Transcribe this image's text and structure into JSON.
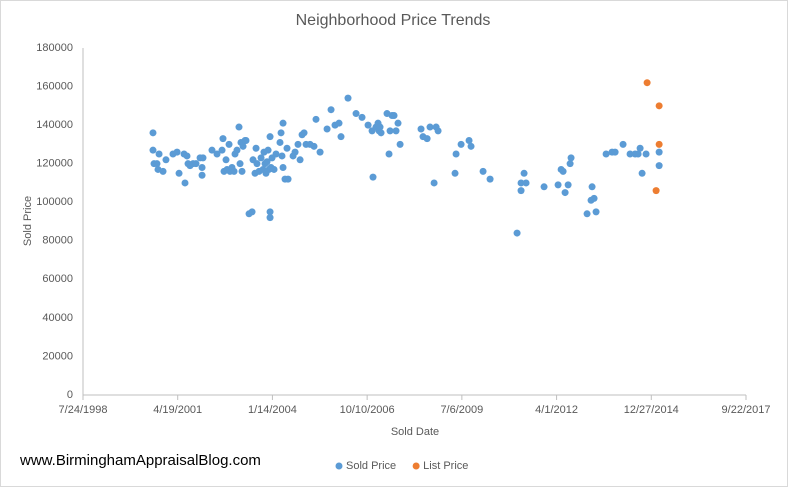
{
  "chart_data": {
    "type": "scatter",
    "title": "Neighborhood Price Trends",
    "x_label": "Sold Date",
    "y_label": "Sold Price",
    "footer": "www.BirminghamAppraisalBlog.com",
    "xlim": [
      36000,
      43000
    ],
    "xticks": [
      {
        "value": 36000,
        "label": "7/24/1998"
      },
      {
        "value": 37000,
        "label": "4/19/2001"
      },
      {
        "value": 38000,
        "label": "1/14/2004"
      },
      {
        "value": 39000,
        "label": "10/10/2006"
      },
      {
        "value": 40000,
        "label": "7/6/2009"
      },
      {
        "value": 41000,
        "label": "4/1/2012"
      },
      {
        "value": 42000,
        "label": "12/27/2014"
      },
      {
        "value": 43000,
        "label": "9/22/2017"
      }
    ],
    "ylim": [
      0,
      180000
    ],
    "yticks": [
      0,
      20000,
      40000,
      60000,
      80000,
      100000,
      120000,
      140000,
      160000,
      180000
    ],
    "grid": false,
    "legend": "bottom",
    "series": [
      {
        "name": "Sold Price",
        "color": "#5b9bd5",
        "x": [
          36739,
          36739,
          36750,
          36781,
          36792,
          36803,
          36845,
          36876,
          36950,
          36993,
          37014,
          37067,
          37077,
          37098,
          37109,
          37130,
          37162,
          37193,
          37236,
          37257,
          37257,
          37267,
          37362,
          37415,
          37468,
          37478,
          37489,
          37510,
          37521,
          37542,
          37552,
          37573,
          37595,
          37605,
          37626,
          37647,
          37658,
          37668,
          37679,
          37690,
          37711,
          37721,
          37753,
          37785,
          37795,
          37816,
          37827,
          37837,
          37859,
          37880,
          37901,
          37911,
          37922,
          37932,
          37943,
          37954,
          37964,
          37975,
          37975,
          37975,
          37985,
          37996,
          38017,
          38038,
          38080,
          38091,
          38112,
          38101,
          38112,
          38133,
          38165,
          38154,
          38218,
          38239,
          38270,
          38292,
          38313,
          38334,
          38355,
          38397,
          38439,
          38460,
          38503,
          38577,
          38619,
          38661,
          38703,
          38724,
          38798,
          38883,
          38946,
          39010,
          39052,
          39062,
          39094,
          39115,
          39126,
          39136,
          39147,
          39210,
          39231,
          39242,
          39263,
          39284,
          39305,
          39326,
          39348,
          39569,
          39590,
          39633,
          39664,
          39707,
          39728,
          39749,
          39928,
          39939,
          39992,
          40076,
          40097,
          40224,
          40298,
          40583,
          40625,
          40625,
          40657,
          40678,
          40868,
          41016,
          41048,
          41069,
          41090,
          41122,
          41143,
          41153,
          41322,
          41364,
          41375,
          41396,
          41417,
          41523,
          41586,
          41618,
          41702,
          41776,
          41829,
          41861,
          41882,
          41903,
          41945,
          42083,
          42083
        ],
        "values": [
          136000,
          127000,
          120000,
          120000,
          117000,
          125000,
          116000,
          122000,
          125000,
          126000,
          115000,
          125000,
          110000,
          124000,
          120000,
          119000,
          120000,
          120000,
          123000,
          114000,
          118000,
          123000,
          127000,
          125000,
          127000,
          133000,
          116000,
          122000,
          117000,
          130000,
          116000,
          118000,
          116000,
          125000,
          127000,
          139000,
          120000,
          131000,
          116000,
          129000,
          132000,
          132000,
          94000,
          95000,
          122000,
          115000,
          128000,
          120000,
          116000,
          123000,
          117000,
          126000,
          120000,
          115000,
          121000,
          127000,
          117000,
          92000,
          95000,
          134000,
          118000,
          123000,
          117000,
          125000,
          131000,
          136000,
          141000,
          124000,
          118000,
          112000,
          112000,
          128000,
          124000,
          126000,
          130000,
          122000,
          135000,
          136000,
          130000,
          130000,
          129000,
          143000,
          126000,
          138000,
          148000,
          140000,
          141000,
          134000,
          154000,
          146000,
          144000,
          140000,
          137000,
          113000,
          139000,
          141000,
          137000,
          139000,
          136000,
          146000,
          125000,
          137000,
          145000,
          145000,
          137000,
          141000,
          130000,
          138000,
          134000,
          133000,
          139000,
          110000,
          139000,
          137000,
          115000,
          125000,
          130000,
          132000,
          129000,
          116000,
          112000,
          84000,
          110000,
          106000,
          115000,
          110000,
          108000,
          109000,
          117000,
          116000,
          105000,
          109000,
          120000,
          123000,
          94000,
          101000,
          108000,
          102000,
          95000,
          125000,
          126000,
          126000,
          130000,
          125000,
          125000,
          125000,
          128000,
          115000,
          125000,
          119000,
          126000
        ]
      },
      {
        "name": "List Price",
        "color": "#ed7d31",
        "x": [
          41956,
          42051,
          42083,
          42083
        ],
        "values": [
          162000,
          106000,
          150000,
          130000
        ]
      }
    ]
  }
}
